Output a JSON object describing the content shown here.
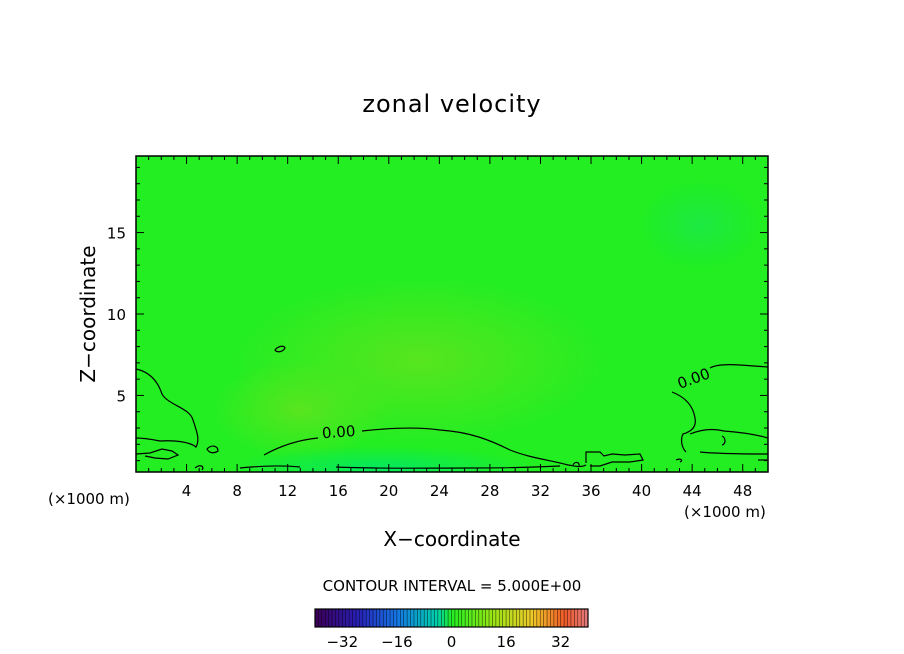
{
  "chart_data": {
    "type": "contour",
    "title": "zonal velocity",
    "xlabel": "X−coordinate",
    "ylabel": "Z−coordinate",
    "x_unit_left": "(×1000 m)",
    "x_unit_right": "(×1000 m)",
    "xlim": [
      0,
      50
    ],
    "ylim": [
      0.3,
      19.7
    ],
    "x_ticks": [
      4,
      8,
      12,
      16,
      20,
      24,
      28,
      32,
      36,
      40,
      44,
      48
    ],
    "y_ticks": [
      5,
      10,
      15
    ],
    "contour_interval_text": "CONTOUR INTERVAL = 5.000E+00",
    "contour_levels": [
      0.0
    ],
    "contour_labels": [
      {
        "text": "0.00",
        "x": 15.3,
        "y": 2.5
      },
      {
        "text": "0.00",
        "x": 42.3,
        "y": 5.9
      }
    ],
    "colorbar": {
      "min": -40,
      "max": 40,
      "ticks": [
        -32,
        -16,
        0,
        16,
        32
      ],
      "tick_labels": [
        "−32",
        "−16",
        "0",
        "16",
        "32"
      ]
    },
    "colors": {
      "background_field": "#22ee22",
      "zero_contour": "#000000"
    }
  }
}
